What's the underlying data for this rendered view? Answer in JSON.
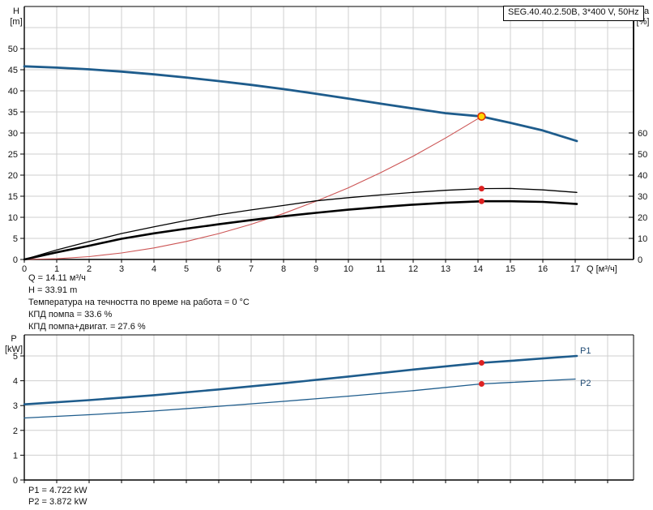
{
  "title_box": "SEG.40.40.2.50B, 3*400 V, 50Hz",
  "axes": {
    "h_unit_line1": "H",
    "h_unit_line2": "[m]",
    "eta_unit_line1": "eta",
    "eta_unit_line2": "[%]",
    "q_unit": "Q [м³/ч]",
    "p_unit_line1": "P",
    "p_unit_line2": "[kW]"
  },
  "annotations": {
    "q": "Q = 14.11 м³/ч",
    "h": "H = 33.91 m",
    "temp": "Температура на течността по време на работа = 0 °C",
    "eff_pump": "КПД помпа = 33.6 %",
    "eff_total": "КПД помпа+двигат. = 27.6 %",
    "p1": "P1 = 4.722 kW",
    "p2": "P2 = 3.872 kW"
  },
  "curve_labels": {
    "p1": "P1",
    "p2": "P2"
  },
  "colors": {
    "curve_blue": "#1e5c8c",
    "system_red": "#cc5555",
    "dot_red": "#dd2222",
    "op_fill": "#ffd700",
    "op_stroke": "#e03000",
    "black": "#000000",
    "grid": "#cfcfcf"
  },
  "chart_data": [
    {
      "type": "line",
      "title": "SEG.40.40.2.50B, 3*400 V, 50Hz",
      "xlabel": "Q [м³/ч]",
      "ylabel_left": "H [m]",
      "ylabel_right": "eta [%]",
      "x_range": [
        0,
        18.8
      ],
      "x_ticks": [
        0,
        1,
        2,
        3,
        4,
        5,
        6,
        7,
        8,
        9,
        10,
        11,
        12,
        13,
        14,
        15,
        16,
        17
      ],
      "y_left_range": [
        0,
        60
      ],
      "y_left_ticks": [
        0,
        5,
        10,
        15,
        20,
        25,
        30,
        35,
        40,
        45,
        50
      ],
      "y_right_range": [
        0,
        120
      ],
      "y_right_ticks": [
        0,
        10,
        20,
        30,
        40,
        50,
        60
      ],
      "grid": true,
      "series": [
        {
          "name": "pump-head-curve",
          "axis": "left",
          "color": "#1e5c8c",
          "width": 2.8,
          "points": [
            [
              0,
              45.8
            ],
            [
              1,
              45.5
            ],
            [
              2,
              45.1
            ],
            [
              3,
              44.55
            ],
            [
              4,
              43.9
            ],
            [
              5,
              43.15
            ],
            [
              6,
              42.3
            ],
            [
              7,
              41.4
            ],
            [
              8,
              40.4
            ],
            [
              9,
              39.3
            ],
            [
              10,
              38.15
            ],
            [
              11,
              36.95
            ],
            [
              12,
              35.8
            ],
            [
              13,
              34.7
            ],
            [
              14,
              34.0
            ],
            [
              14.11,
              33.91
            ],
            [
              15,
              32.4
            ],
            [
              16,
              30.6
            ],
            [
              17.05,
              28.1
            ]
          ]
        },
        {
          "name": "system-curve",
          "axis": "left",
          "color": "#cc5555",
          "width": 1.1,
          "points": [
            [
              0,
              0
            ],
            [
              1,
              0.17
            ],
            [
              2,
              0.68
            ],
            [
              3,
              1.53
            ],
            [
              4,
              2.73
            ],
            [
              5,
              4.26
            ],
            [
              6,
              6.13
            ],
            [
              7,
              8.35
            ],
            [
              8,
              10.9
            ],
            [
              9,
              13.8
            ],
            [
              10,
              17.0
            ],
            [
              11,
              20.6
            ],
            [
              12,
              24.5
            ],
            [
              13,
              28.8
            ],
            [
              14,
              33.4
            ],
            [
              14.11,
              33.91
            ]
          ]
        },
        {
          "name": "eta-pump",
          "axis": "right",
          "color": "#000000",
          "width": 1.3,
          "points": [
            [
              0,
              0
            ],
            [
              1,
              4.5
            ],
            [
              2,
              8.5
            ],
            [
              3,
              12.3
            ],
            [
              4,
              15.5
            ],
            [
              5,
              18.5
            ],
            [
              6,
              21.2
            ],
            [
              7,
              23.5
            ],
            [
              8,
              25.6
            ],
            [
              9,
              27.8
            ],
            [
              10,
              29.3
            ],
            [
              11,
              30.6
            ],
            [
              12,
              31.8
            ],
            [
              13,
              32.8
            ],
            [
              14,
              33.5
            ],
            [
              14.11,
              33.6
            ],
            [
              15,
              33.7
            ],
            [
              16,
              33.0
            ],
            [
              17.05,
              31.8
            ]
          ]
        },
        {
          "name": "eta-pump-motor",
          "axis": "right",
          "color": "#000000",
          "width": 2.6,
          "points": [
            [
              0,
              0
            ],
            [
              1,
              3.4
            ],
            [
              2,
              6.5
            ],
            [
              3,
              9.8
            ],
            [
              4,
              12.4
            ],
            [
              5,
              14.6
            ],
            [
              6,
              16.7
            ],
            [
              7,
              18.7
            ],
            [
              8,
              20.5
            ],
            [
              9,
              22.1
            ],
            [
              10,
              23.6
            ],
            [
              11,
              24.9
            ],
            [
              12,
              26.0
            ],
            [
              13,
              26.9
            ],
            [
              14,
              27.55
            ],
            [
              14.11,
              27.6
            ],
            [
              15,
              27.6
            ],
            [
              16,
              27.3
            ],
            [
              17.05,
              26.3
            ]
          ]
        }
      ],
      "markers": [
        {
          "name": "operating-point",
          "x": 14.11,
          "y": 33.91,
          "axis": "left",
          "style": "op"
        },
        {
          "name": "eta-pump-point",
          "x": 14.11,
          "y": 33.6,
          "axis": "right",
          "style": "dot"
        },
        {
          "name": "eta-total-point",
          "x": 14.11,
          "y": 27.6,
          "axis": "right",
          "style": "dot"
        }
      ],
      "readout": {
        "Q": "14.11 м³/ч",
        "H": "33.91 m",
        "eta_pump_pct": 33.6,
        "eta_pump_motor_pct": 27.6,
        "liquid_temp_C": 0
      }
    },
    {
      "type": "line",
      "xlabel": "",
      "ylabel_left": "P [kW]",
      "x_range": [
        0,
        18.8
      ],
      "x_ticks": [
        0,
        1,
        2,
        3,
        4,
        5,
        6,
        7,
        8,
        9,
        10,
        11,
        12,
        13,
        14,
        15,
        16,
        17,
        18
      ],
      "y_left_range": [
        0,
        5.85
      ],
      "y_left_ticks": [
        0,
        1,
        2,
        3,
        4,
        5
      ],
      "grid": true,
      "series": [
        {
          "name": "P1",
          "axis": "left",
          "color": "#1e5c8c",
          "width": 2.6,
          "points": [
            [
              0,
              3.05
            ],
            [
              2,
              3.22
            ],
            [
              4,
              3.42
            ],
            [
              6,
              3.65
            ],
            [
              8,
              3.9
            ],
            [
              10,
              4.17
            ],
            [
              12,
              4.45
            ],
            [
              14,
              4.71
            ],
            [
              14.11,
              4.722
            ],
            [
              15,
              4.8
            ],
            [
              16,
              4.9
            ],
            [
              17.05,
              5.0
            ]
          ]
        },
        {
          "name": "P2",
          "axis": "left",
          "color": "#1e5c8c",
          "width": 1.3,
          "points": [
            [
              0,
              2.5
            ],
            [
              2,
              2.63
            ],
            [
              4,
              2.78
            ],
            [
              6,
              2.97
            ],
            [
              8,
              3.17
            ],
            [
              10,
              3.38
            ],
            [
              12,
              3.6
            ],
            [
              14,
              3.86
            ],
            [
              14.11,
              3.872
            ],
            [
              15,
              3.93
            ],
            [
              16,
              4.0
            ],
            [
              17,
              4.07
            ]
          ]
        }
      ],
      "markers": [
        {
          "name": "p1-point",
          "x": 14.11,
          "y": 4.722,
          "axis": "left",
          "style": "dot"
        },
        {
          "name": "p2-point",
          "x": 14.11,
          "y": 3.872,
          "axis": "left",
          "style": "dot"
        }
      ],
      "readout": {
        "P1": "4.722 kW",
        "P2": "3.872 kW"
      }
    }
  ]
}
